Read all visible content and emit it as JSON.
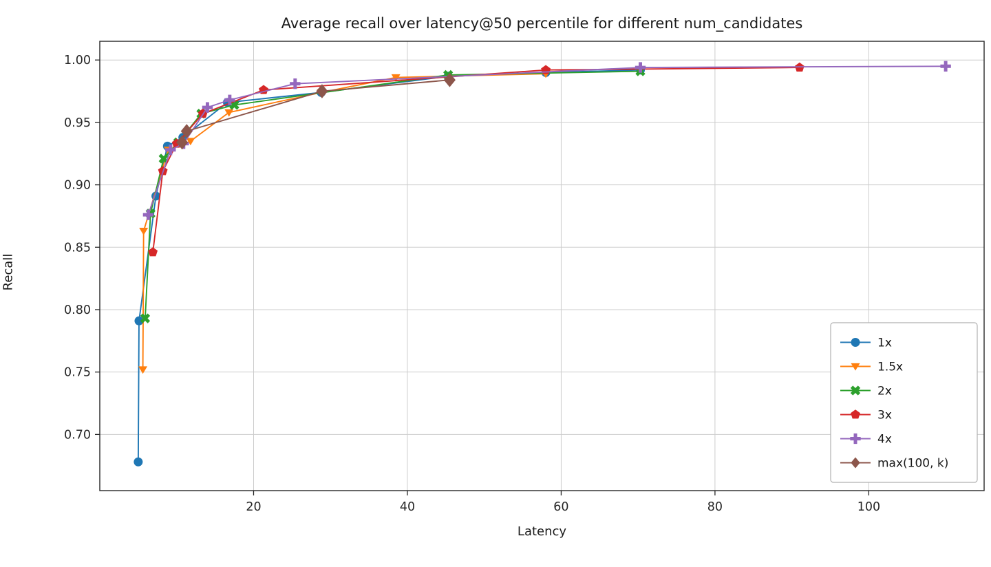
{
  "chart_data": {
    "type": "line",
    "title": "Average recall over latency@50 percentile for different num_candidates",
    "xlabel": "Latency",
    "ylabel": "Recall",
    "xlim": [
      0,
      115
    ],
    "ylim": [
      0.655,
      1.015
    ],
    "xticks": [
      20,
      40,
      60,
      80,
      100
    ],
    "xtick_labels": [
      "20",
      "40",
      "60",
      "80",
      "100"
    ],
    "yticks": [
      0.7,
      0.75,
      0.8,
      0.85,
      0.9,
      0.95,
      1.0
    ],
    "ytick_labels": [
      "0.70",
      "0.75",
      "0.80",
      "0.85",
      "0.90",
      "0.95",
      "1.00"
    ],
    "grid": true,
    "legend_position": "lower right",
    "series": [
      {
        "name": "1x",
        "color": "#1f77b4",
        "marker": "circle",
        "marker_size": 6.5,
        "points": [
          [
            5.0,
            0.678
          ],
          [
            5.1,
            0.791
          ],
          [
            7.3,
            0.891
          ],
          [
            8.8,
            0.931
          ],
          [
            10.8,
            0.938
          ],
          [
            16.6,
            0.966
          ],
          [
            28.8,
            0.974
          ],
          [
            45.3,
            0.987
          ],
          [
            58.0,
            0.99
          ],
          [
            70.3,
            0.992
          ]
        ]
      },
      {
        "name": "1.5x",
        "color": "#ff7f0e",
        "marker": "triangle-down",
        "marker_size": 6.5,
        "points": [
          [
            5.6,
            0.752
          ],
          [
            5.7,
            0.863
          ],
          [
            8.9,
            0.928
          ],
          [
            11.8,
            0.935
          ],
          [
            16.8,
            0.958
          ],
          [
            28.8,
            0.974
          ],
          [
            38.5,
            0.986
          ],
          [
            58.0,
            0.989
          ]
        ]
      },
      {
        "name": "2x",
        "color": "#2ca02c",
        "marker": "x-filled",
        "marker_size": 6.5,
        "points": [
          [
            5.9,
            0.793
          ],
          [
            6.6,
            0.877
          ],
          [
            8.3,
            0.921
          ],
          [
            10.2,
            0.934
          ],
          [
            13.2,
            0.957
          ],
          [
            17.5,
            0.964
          ],
          [
            45.3,
            0.988
          ],
          [
            70.3,
            0.991
          ]
        ]
      },
      {
        "name": "3x",
        "color": "#d62728",
        "marker": "pentagon",
        "marker_size": 6.5,
        "points": [
          [
            6.9,
            0.846
          ],
          [
            8.2,
            0.911
          ],
          [
            10.0,
            0.933
          ],
          [
            13.4,
            0.957
          ],
          [
            21.3,
            0.976
          ],
          [
            58.0,
            0.992
          ],
          [
            91.0,
            0.994
          ]
        ]
      },
      {
        "name": "4x",
        "color": "#9467bd",
        "marker": "plus",
        "marker_size": 6.5,
        "points": [
          [
            6.3,
            0.876
          ],
          [
            9.2,
            0.928
          ],
          [
            10.9,
            0.933
          ],
          [
            14.0,
            0.962
          ],
          [
            16.9,
            0.968
          ],
          [
            25.4,
            0.981
          ],
          [
            70.3,
            0.994
          ],
          [
            110.0,
            0.995
          ]
        ]
      },
      {
        "name": "max(100, k)",
        "color": "#8c564b",
        "marker": "diamond",
        "marker_size": 9,
        "points": [
          [
            10.7,
            0.934
          ],
          [
            11.3,
            0.943
          ],
          [
            28.9,
            0.975
          ],
          [
            45.5,
            0.984
          ]
        ]
      }
    ]
  }
}
